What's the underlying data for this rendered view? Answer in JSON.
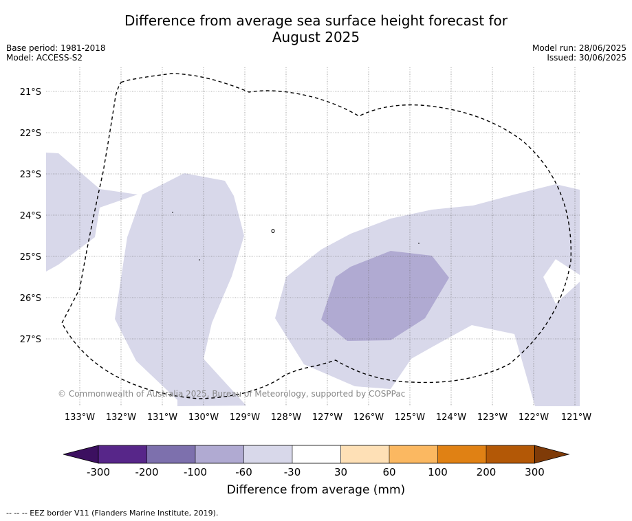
{
  "header": {
    "title_line1": "Difference from average sea surface height forecast for",
    "title_line2": "August 2025",
    "base_period": "Base period: 1981-2018",
    "model": "Model: ACCESS-S2",
    "model_run": "Model run: 28/06/2025",
    "issued": "Issued: 30/06/2025"
  },
  "map": {
    "lat_labels": [
      "21°S",
      "22°S",
      "23°S",
      "24°S",
      "25°S",
      "26°S",
      "27°S"
    ],
    "lon_labels": [
      "133°W",
      "132°W",
      "131°W",
      "130°W",
      "129°W",
      "128°W",
      "127°W",
      "126°W",
      "125°W",
      "124°W",
      "123°W",
      "122°W",
      "121°W"
    ],
    "copyright": "© Commonwealth of Australia 2025, Bureau of Meteorology, supported by COSPPac",
    "colors": {
      "-30_to_-60": "#d8d8ea",
      "-60_to_-100": "#b0aad2"
    }
  },
  "colorbar": {
    "ticks": [
      "-300",
      "-200",
      "-100",
      "-60",
      "-30",
      "30",
      "60",
      "100",
      "200",
      "300"
    ],
    "colors": [
      "#3c1060",
      "#572689",
      "#7d70ad",
      "#b0aad2",
      "#d8d8ea",
      "#ffffff",
      "#fee0b6",
      "#fbb861",
      "#e08114",
      "#b35806",
      "#7f3b08"
    ],
    "label": "Difference from average (mm)"
  },
  "footer": {
    "legend_text": "--  --  -- EEZ border V11 (Flanders Marine Institute, 2019)."
  }
}
